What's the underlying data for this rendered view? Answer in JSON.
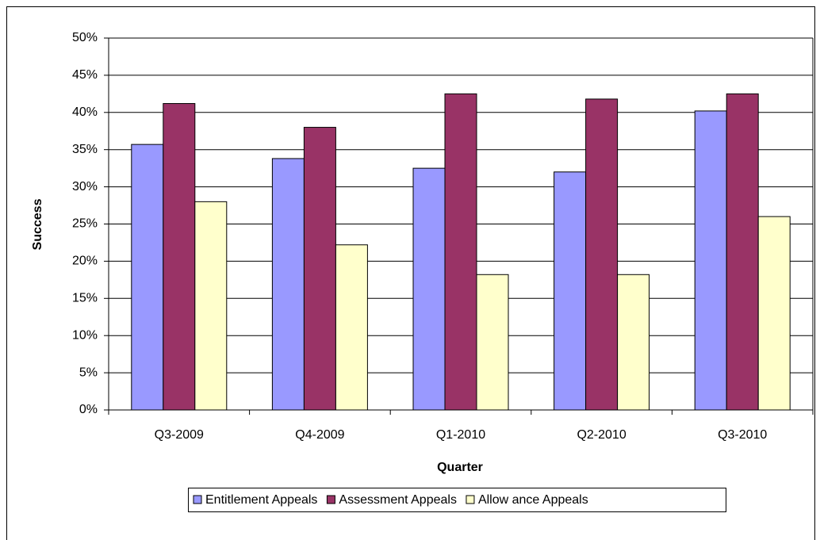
{
  "chart_data": {
    "type": "bar",
    "xlabel": "Quarter",
    "ylabel": "Success",
    "categories": [
      "Q3-2009",
      "Q4-2009",
      "Q1-2010",
      "Q2-2010",
      "Q3-2010"
    ],
    "series": [
      {
        "name": "Entitlement Appeals",
        "color": "#9999ff",
        "values": [
          35.7,
          33.8,
          32.5,
          32.0,
          40.2
        ]
      },
      {
        "name": "Assessment Appeals",
        "color": "#993366",
        "values": [
          41.2,
          38.0,
          42.5,
          41.8,
          42.5
        ]
      },
      {
        "name": "Allow ance Appeals",
        "color": "#ffffcc",
        "values": [
          28.0,
          22.2,
          18.2,
          18.2,
          26.0
        ]
      }
    ],
    "ylim": [
      0,
      50
    ],
    "yticks": [
      {
        "value": 0,
        "label": "0%"
      },
      {
        "value": 5,
        "label": "5%"
      },
      {
        "value": 10,
        "label": "10%"
      },
      {
        "value": 15,
        "label": "15%"
      },
      {
        "value": 20,
        "label": "20%"
      },
      {
        "value": 25,
        "label": "25%"
      },
      {
        "value": 30,
        "label": "30%"
      },
      {
        "value": 35,
        "label": "35%"
      },
      {
        "value": 40,
        "label": "40%"
      },
      {
        "value": 45,
        "label": "45%"
      },
      {
        "value": 50,
        "label": "50%"
      }
    ],
    "grid": true,
    "legend": "bottom"
  }
}
